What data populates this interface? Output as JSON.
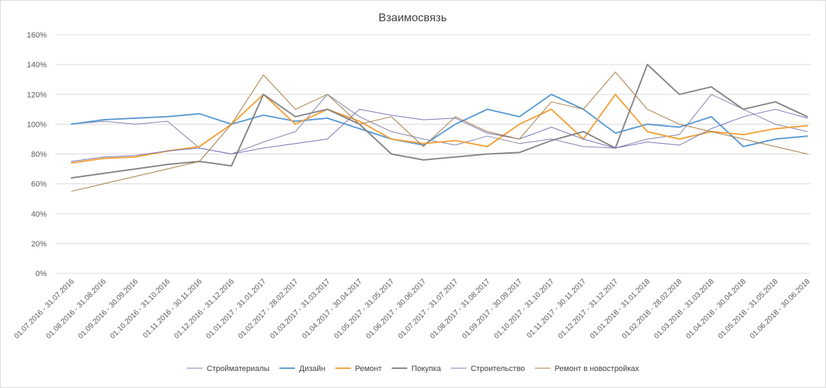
{
  "chart_data": {
    "type": "line",
    "title": "Взаимосвязь",
    "xlabel": "",
    "ylabel": "",
    "ylim": [
      0,
      160
    ],
    "y_ticks": [
      "0%",
      "20%",
      "40%",
      "60%",
      "80%",
      "100%",
      "120%",
      "140%",
      "160%"
    ],
    "y_tick_values": [
      0,
      20,
      40,
      60,
      80,
      100,
      120,
      140,
      160
    ],
    "grid": true,
    "legend_position": "bottom",
    "categories": [
      "01.07.2016 - 31.07.2016",
      "01.08.2016 - 31.08.2016",
      "01.09.2016 - 30.09.2016",
      "01.10.2016 - 31.10.2016",
      "01.11.2016 - 30.11.2016",
      "01.12.2016 - 31.12.2016",
      "01.01.2017 - 31.01.2017",
      "01.02.2017 - 28.02.2017",
      "01.03.2017 - 31.03.2017",
      "01.04.2017 - 30.04.2017",
      "01.05.2017 - 31.05.2017",
      "01.06.2017 - 30.06.2017",
      "01.07.2017 - 31.07.2017",
      "01.08.2017 - 31.08.2017",
      "01.09.2017 - 30.09.2017",
      "01.10.2017 - 31.10.2017",
      "01.11.2017 - 30.11.2017",
      "01.12.2017 - 31.12.2017",
      "01.01.2018 - 31.01.2018",
      "01.02.2018 - 28.02.2018",
      "01.03.2018 - 31.03.2018",
      "01.04.2018 - 30.04.2018",
      "01.05.2018 - 31.05.2018",
      "01.06.2018 - 30.06.2018"
    ],
    "series": [
      {
        "name": "Стройматериалы",
        "color": "#7f7fa8",
        "width": 1,
        "values": [
          100,
          102,
          100,
          102,
          84,
          80,
          88,
          95,
          120,
          105,
          95,
          90,
          86,
          92,
          87,
          90,
          85,
          84,
          90,
          93,
          120,
          110,
          100,
          95
        ]
      },
      {
        "name": "Дизайн",
        "color": "#5b9bd5",
        "width": 2,
        "values": [
          100,
          103,
          104,
          105,
          107,
          100,
          106,
          102,
          104,
          97,
          90,
          86,
          100,
          110,
          105,
          120,
          110,
          94,
          100,
          98,
          105,
          85,
          90,
          92
        ]
      },
      {
        "name": "Ремонт",
        "color": "#f4a23c",
        "width": 2,
        "values": [
          74,
          77,
          78,
          82,
          85,
          100,
          120,
          100,
          110,
          102,
          90,
          87,
          89,
          85,
          100,
          110,
          90,
          120,
          95,
          90,
          95,
          93,
          97,
          99
        ]
      },
      {
        "name": "Покупка",
        "color": "#858585",
        "width": 2,
        "values": [
          64,
          67,
          70,
          73,
          75,
          72,
          120,
          105,
          110,
          100,
          80,
          76,
          78,
          80,
          81,
          89,
          95,
          84,
          140,
          120,
          125,
          110,
          115,
          105
        ]
      },
      {
        "name": "Строительство",
        "color": "#7472b8",
        "width": 1,
        "values": [
          75,
          78,
          79,
          82,
          84,
          80,
          84,
          87,
          90,
          110,
          106,
          103,
          104,
          94,
          90,
          98,
          90,
          84,
          88,
          86,
          97,
          105,
          110,
          104
        ]
      },
      {
        "name": "Ремонт в новостройках",
        "color": "#a0783f",
        "width": 1,
        "values": [
          55,
          60,
          65,
          70,
          75,
          100,
          133,
          110,
          120,
          100,
          105,
          85,
          105,
          95,
          90,
          115,
          110,
          135,
          110,
          100,
          95,
          90,
          85,
          80
        ]
      }
    ]
  }
}
